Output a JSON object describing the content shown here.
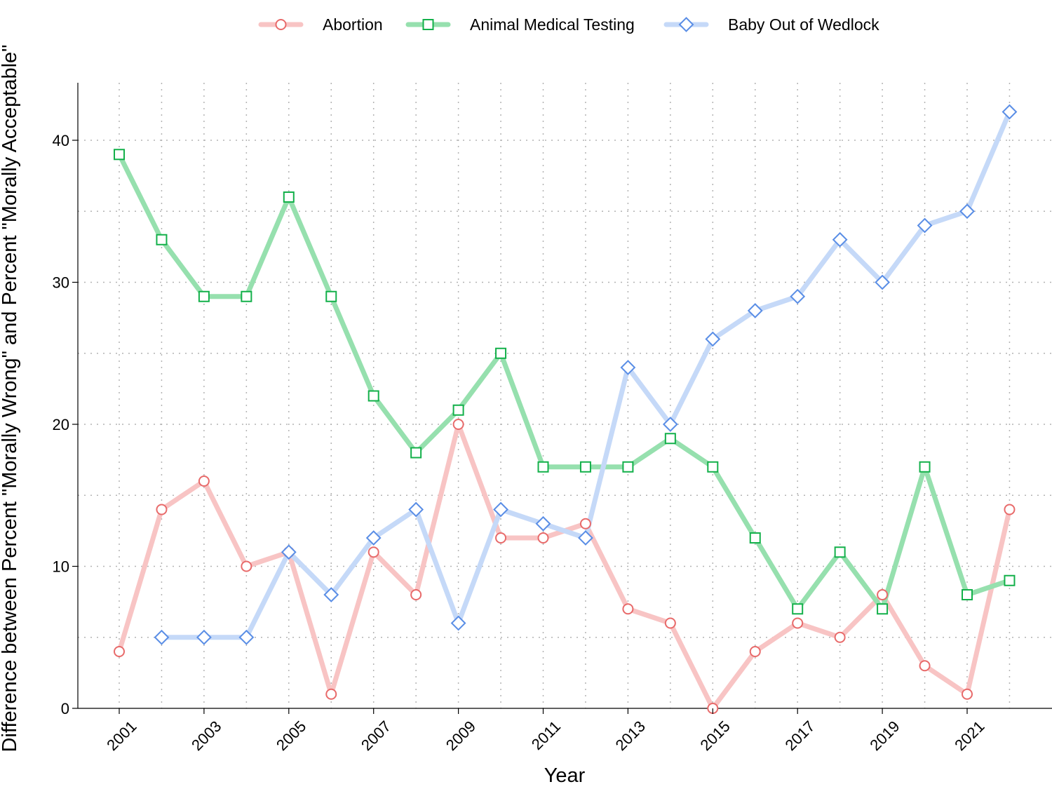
{
  "chart_data": {
    "type": "line",
    "xlabel": "Year",
    "ylabel": "Difference between Percent \"Morally Wrong\" and Percent \"Morally Acceptable\"",
    "xlim": [
      2000,
      2023
    ],
    "ylim": [
      0,
      44
    ],
    "x_ticks": [
      2001,
      2003,
      2005,
      2007,
      2009,
      2011,
      2013,
      2015,
      2017,
      2019,
      2021
    ],
    "y_ticks": [
      0,
      10,
      20,
      30,
      40
    ],
    "grid": true,
    "legend_position": "top-center",
    "series": [
      {
        "name": "Abortion",
        "marker": "circle",
        "line_color": "#f8c4c4",
        "marker_color": "#e86a6a",
        "x": [
          2001,
          2002,
          2003,
          2004,
          2005,
          2006,
          2007,
          2008,
          2009,
          2010,
          2011,
          2012,
          2013,
          2014,
          2015,
          2016,
          2017,
          2018,
          2019,
          2020,
          2021,
          2022
        ],
        "y": [
          4,
          14,
          16,
          10,
          11,
          1,
          11,
          8,
          20,
          12,
          12,
          13,
          7,
          6,
          0,
          4,
          6,
          5,
          8,
          3,
          1,
          14
        ]
      },
      {
        "name": "Animal Medical Testing",
        "marker": "square",
        "line_color": "#96e0ae",
        "marker_color": "#13b04a",
        "x": [
          2001,
          2002,
          2003,
          2004,
          2005,
          2006,
          2007,
          2008,
          2009,
          2010,
          2011,
          2012,
          2013,
          2014,
          2015,
          2016,
          2017,
          2018,
          2019,
          2020,
          2021,
          2022
        ],
        "y": [
          39,
          33,
          29,
          29,
          36,
          29,
          22,
          18,
          21,
          25,
          17,
          17,
          17,
          19,
          17,
          12,
          7,
          11,
          7,
          17,
          8,
          9
        ]
      },
      {
        "name": "Baby Out of Wedlock",
        "marker": "diamond",
        "line_color": "#c5d9f8",
        "marker_color": "#5a8ee6",
        "x": [
          2002,
          2003,
          2004,
          2005,
          2006,
          2007,
          2008,
          2009,
          2010,
          2011,
          2012,
          2013,
          2014,
          2015,
          2016,
          2017,
          2018,
          2019,
          2020,
          2021,
          2022
        ],
        "y": [
          5,
          5,
          5,
          11,
          8,
          12,
          14,
          6,
          14,
          13,
          12,
          24,
          20,
          26,
          28,
          29,
          33,
          30,
          34,
          35,
          42
        ]
      }
    ]
  }
}
